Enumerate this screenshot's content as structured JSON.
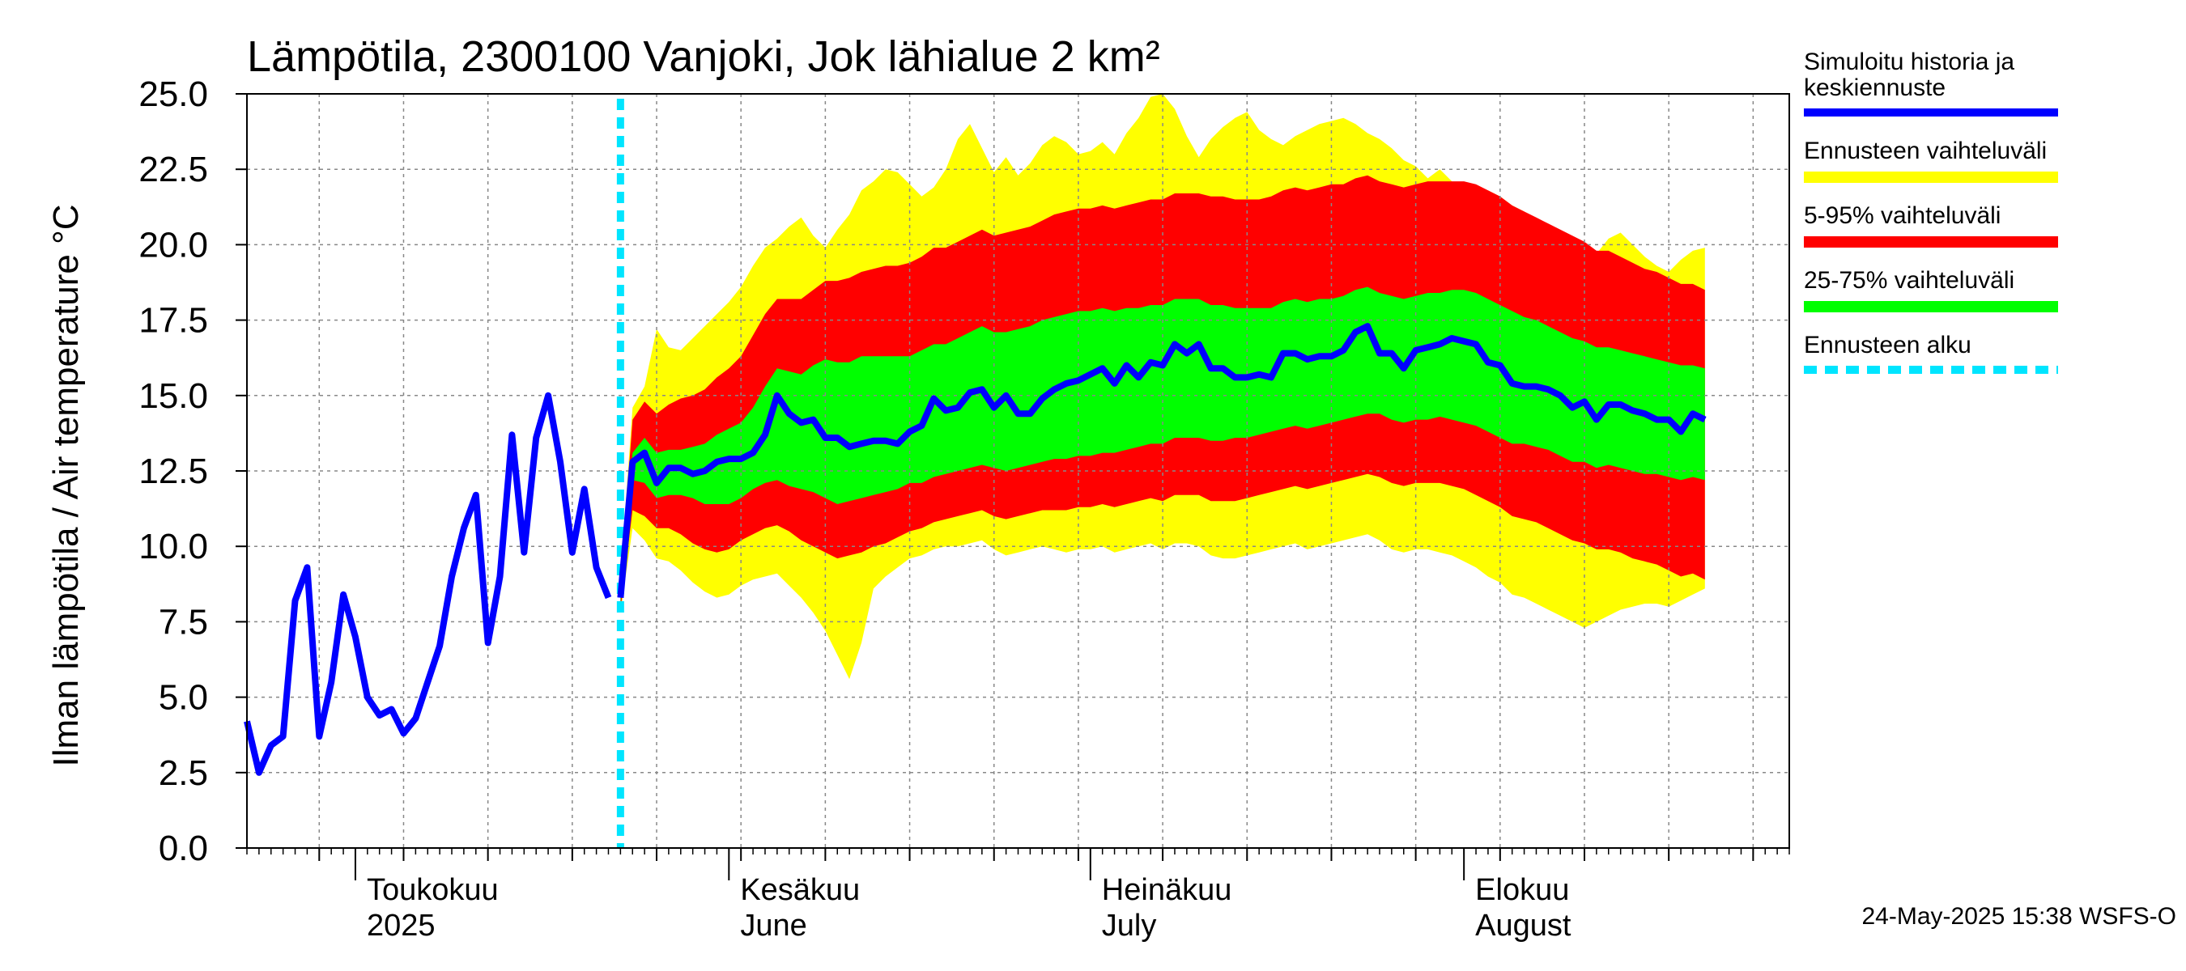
{
  "chart_data": {
    "type": "area",
    "title": "Lämpötila, 2300100 Vanjoki, Jok lähialue 2 km²",
    "ylabel": "Ilman lämpötila / Air temperature   °C",
    "ylim": [
      0,
      25
    ],
    "yticks": [
      "0.0",
      "2.5",
      "5.0",
      "7.5",
      "10.0",
      "12.5",
      "15.0",
      "17.5",
      "20.0",
      "22.5",
      "25.0"
    ],
    "x_start": "2025-04-22",
    "x_end": "2025-08-28",
    "month_labels": [
      {
        "date": "2025-05-01",
        "line1": "Toukokuu",
        "line2": "2025"
      },
      {
        "date": "2025-06-01",
        "line1": "Kesäkuu",
        "line2": "June"
      },
      {
        "date": "2025-07-01",
        "line1": "Heinäkuu",
        "line2": "July"
      },
      {
        "date": "2025-08-01",
        "line1": "Elokuu",
        "line2": "August"
      }
    ],
    "forecast_start": "2025-05-23",
    "history": {
      "name": "Simuloitu historia ja keskiennuste",
      "start": "2025-04-22",
      "values": [
        4.2,
        2.5,
        3.4,
        3.7,
        8.2,
        9.3,
        3.7,
        5.5,
        8.4,
        7.0,
        5.0,
        4.4,
        4.6,
        3.8,
        4.3,
        5.5,
        6.7,
        9.0,
        10.6,
        11.7,
        6.8,
        9.0,
        13.7,
        9.8,
        13.6,
        15.0,
        12.8,
        9.8,
        11.9,
        9.3,
        8.3
      ]
    },
    "forecast": {
      "start": "2025-05-23",
      "median": [
        8.3,
        12.8,
        13.1,
        12.1,
        12.6,
        12.6,
        12.4,
        12.5,
        12.8,
        12.9,
        12.9,
        13.1,
        13.7,
        15.0,
        14.4,
        14.1,
        14.2,
        13.6,
        13.6,
        13.3,
        13.4,
        13.5,
        13.5,
        13.4,
        13.8,
        14.0,
        14.9,
        14.5,
        14.6,
        15.1,
        15.2,
        14.6,
        15.0,
        14.4,
        14.4,
        14.9,
        15.2,
        15.4,
        15.5,
        15.7,
        15.9,
        15.4,
        16.0,
        15.6,
        16.1,
        16.0,
        16.7,
        16.4,
        16.7,
        15.9,
        15.9,
        15.6,
        15.6,
        15.7,
        15.6,
        16.4,
        16.4,
        16.2,
        16.3,
        16.3,
        16.5,
        17.1,
        17.3,
        16.4,
        16.4,
        15.9,
        16.5,
        16.6,
        16.7,
        16.9,
        16.8,
        16.7,
        16.1,
        16.0,
        15.4,
        15.3,
        15.3,
        15.2,
        15.0,
        14.6,
        14.8,
        14.2,
        14.7,
        14.7,
        14.5,
        14.4,
        14.2,
        14.2,
        13.8,
        14.4,
        14.2
      ],
      "p25": [
        8.1,
        12.2,
        12.1,
        11.6,
        11.7,
        11.7,
        11.6,
        11.4,
        11.4,
        11.4,
        11.6,
        11.9,
        12.1,
        12.2,
        12.0,
        11.9,
        11.8,
        11.6,
        11.4,
        11.5,
        11.6,
        11.7,
        11.8,
        11.9,
        12.1,
        12.1,
        12.3,
        12.4,
        12.5,
        12.6,
        12.7,
        12.6,
        12.5,
        12.6,
        12.7,
        12.8,
        12.9,
        12.9,
        13.0,
        13.0,
        13.1,
        13.1,
        13.2,
        13.3,
        13.4,
        13.4,
        13.6,
        13.6,
        13.6,
        13.5,
        13.5,
        13.6,
        13.6,
        13.7,
        13.8,
        13.9,
        14.0,
        13.9,
        14.0,
        14.1,
        14.2,
        14.3,
        14.4,
        14.4,
        14.2,
        14.1,
        14.2,
        14.2,
        14.3,
        14.2,
        14.1,
        14.0,
        13.8,
        13.6,
        13.4,
        13.4,
        13.3,
        13.2,
        13.0,
        12.8,
        12.8,
        12.6,
        12.7,
        12.6,
        12.5,
        12.4,
        12.4,
        12.3,
        12.2,
        12.3,
        12.2
      ],
      "p75": [
        8.6,
        13.1,
        13.6,
        13.1,
        13.2,
        13.2,
        13.3,
        13.4,
        13.7,
        13.9,
        14.1,
        14.6,
        15.3,
        15.9,
        15.8,
        15.7,
        16.0,
        16.2,
        16.1,
        16.1,
        16.3,
        16.3,
        16.3,
        16.3,
        16.3,
        16.5,
        16.7,
        16.7,
        16.9,
        17.1,
        17.3,
        17.1,
        17.1,
        17.2,
        17.3,
        17.5,
        17.6,
        17.7,
        17.8,
        17.8,
        17.9,
        17.8,
        17.9,
        17.9,
        18.0,
        18.0,
        18.2,
        18.2,
        18.2,
        18.0,
        18.0,
        17.9,
        17.9,
        17.9,
        17.9,
        18.1,
        18.2,
        18.1,
        18.2,
        18.2,
        18.3,
        18.5,
        18.6,
        18.4,
        18.3,
        18.2,
        18.3,
        18.4,
        18.4,
        18.5,
        18.5,
        18.4,
        18.2,
        18.0,
        17.8,
        17.6,
        17.5,
        17.3,
        17.1,
        16.9,
        16.8,
        16.6,
        16.6,
        16.5,
        16.4,
        16.3,
        16.2,
        16.1,
        16.0,
        16.0,
        15.9
      ],
      "p05": [
        7.9,
        11.2,
        11.0,
        10.6,
        10.6,
        10.4,
        10.1,
        9.9,
        9.8,
        9.9,
        10.2,
        10.4,
        10.6,
        10.7,
        10.5,
        10.2,
        10.0,
        9.8,
        9.6,
        9.7,
        9.8,
        10.0,
        10.1,
        10.3,
        10.5,
        10.6,
        10.8,
        10.9,
        11.0,
        11.1,
        11.2,
        11.0,
        10.9,
        11.0,
        11.1,
        11.2,
        11.2,
        11.2,
        11.3,
        11.3,
        11.4,
        11.3,
        11.4,
        11.5,
        11.6,
        11.5,
        11.7,
        11.7,
        11.7,
        11.5,
        11.5,
        11.5,
        11.6,
        11.7,
        11.8,
        11.9,
        12.0,
        11.9,
        12.0,
        12.1,
        12.2,
        12.3,
        12.4,
        12.3,
        12.1,
        12.0,
        12.1,
        12.1,
        12.1,
        12.0,
        11.9,
        11.7,
        11.5,
        11.3,
        11.0,
        10.9,
        10.8,
        10.6,
        10.4,
        10.2,
        10.1,
        9.9,
        9.9,
        9.8,
        9.6,
        9.5,
        9.4,
        9.2,
        9.0,
        9.1,
        8.9
      ],
      "p95": [
        8.8,
        14.2,
        14.8,
        14.4,
        14.7,
        14.9,
        15.0,
        15.2,
        15.6,
        15.9,
        16.3,
        17.0,
        17.7,
        18.2,
        18.2,
        18.2,
        18.5,
        18.8,
        18.8,
        18.9,
        19.1,
        19.2,
        19.3,
        19.3,
        19.4,
        19.6,
        19.9,
        19.9,
        20.1,
        20.3,
        20.5,
        20.3,
        20.4,
        20.5,
        20.6,
        20.8,
        21.0,
        21.1,
        21.2,
        21.2,
        21.3,
        21.2,
        21.3,
        21.4,
        21.5,
        21.5,
        21.7,
        21.7,
        21.7,
        21.6,
        21.6,
        21.5,
        21.5,
        21.5,
        21.6,
        21.8,
        21.9,
        21.8,
        21.9,
        22.0,
        22.0,
        22.2,
        22.3,
        22.1,
        22.0,
        21.9,
        22.0,
        22.1,
        22.1,
        22.1,
        22.1,
        22.0,
        21.8,
        21.6,
        21.3,
        21.1,
        20.9,
        20.7,
        20.5,
        20.3,
        20.1,
        19.8,
        19.8,
        19.6,
        19.4,
        19.2,
        19.1,
        18.9,
        18.7,
        18.7,
        18.5
      ],
      "min": [
        7.8,
        10.6,
        10.2,
        9.6,
        9.5,
        9.2,
        8.8,
        8.5,
        8.3,
        8.4,
        8.7,
        8.9,
        9.0,
        9.1,
        8.7,
        8.3,
        7.8,
        7.2,
        6.4,
        5.6,
        6.8,
        8.6,
        9.0,
        9.3,
        9.6,
        9.7,
        9.9,
        10.0,
        10.0,
        10.1,
        10.2,
        9.9,
        9.7,
        9.8,
        9.9,
        10.0,
        9.9,
        9.8,
        9.9,
        9.9,
        10.0,
        9.8,
        9.9,
        10.0,
        10.1,
        9.9,
        10.1,
        10.1,
        10.0,
        9.7,
        9.6,
        9.6,
        9.7,
        9.8,
        9.9,
        10.0,
        10.1,
        9.9,
        10.0,
        10.1,
        10.2,
        10.3,
        10.4,
        10.2,
        9.9,
        9.8,
        9.9,
        9.9,
        9.8,
        9.7,
        9.5,
        9.3,
        9.0,
        8.8,
        8.4,
        8.3,
        8.1,
        7.9,
        7.7,
        7.5,
        7.3,
        7.5,
        7.7,
        7.9,
        8.0,
        8.1,
        8.1,
        8.0,
        8.2,
        8.4,
        8.6
      ],
      "max": [
        9.0,
        14.6,
        15.3,
        17.2,
        16.6,
        16.5,
        16.9,
        17.3,
        17.7,
        18.1,
        18.6,
        19.3,
        19.9,
        20.2,
        20.6,
        20.9,
        20.3,
        19.9,
        20.5,
        21.0,
        21.8,
        22.1,
        22.5,
        22.4,
        22.0,
        21.6,
        21.9,
        22.5,
        23.5,
        24.0,
        23.2,
        22.4,
        22.9,
        22.3,
        22.7,
        23.3,
        23.6,
        23.4,
        23.0,
        23.1,
        23.4,
        23.0,
        23.7,
        24.2,
        24.9,
        25.0,
        24.5,
        23.6,
        22.9,
        23.5,
        23.9,
        24.2,
        24.4,
        23.8,
        23.5,
        23.3,
        23.6,
        23.8,
        24.0,
        24.1,
        24.2,
        24.0,
        23.7,
        23.5,
        23.2,
        22.8,
        22.6,
        22.2,
        22.5,
        22.1,
        21.9,
        21.6,
        21.8,
        21.6,
        21.3,
        21.1,
        20.8,
        20.5,
        20.3,
        20.1,
        19.8,
        19.7,
        20.2,
        20.4,
        20.0,
        19.6,
        19.3,
        19.1,
        19.5,
        19.8,
        19.9
      ]
    },
    "legend": [
      {
        "label": "Simuloitu historia ja keskiennuste",
        "color": "#0000ff"
      },
      {
        "label": "Ennusteen vaihteluväli",
        "color": "#ffff00"
      },
      {
        "label": "5-95% vaihteluväli",
        "color": "#ff0000"
      },
      {
        "label": "25-75% vaihteluväli",
        "color": "#00ff00"
      },
      {
        "label": "Ennusteen alku",
        "color": "#00e5ff"
      }
    ],
    "timestamp": "24-May-2025 15:38 WSFS-O"
  },
  "colors": {
    "history_line": "#0000ff",
    "range_band": "#ffff00",
    "band_5_95": "#ff0000",
    "band_25_75": "#00ff00",
    "forecast_start_line": "#00e5ff",
    "grid": "#888888"
  },
  "legend_lines": {
    "item0_line1": "Simuloitu historia ja",
    "item0_line2": "keskiennuste",
    "item1": "Ennusteen vaihteluväli",
    "item2": "5-95% vaihteluväli",
    "item3": "25-75% vaihteluväli",
    "item4": "Ennusteen alku"
  }
}
